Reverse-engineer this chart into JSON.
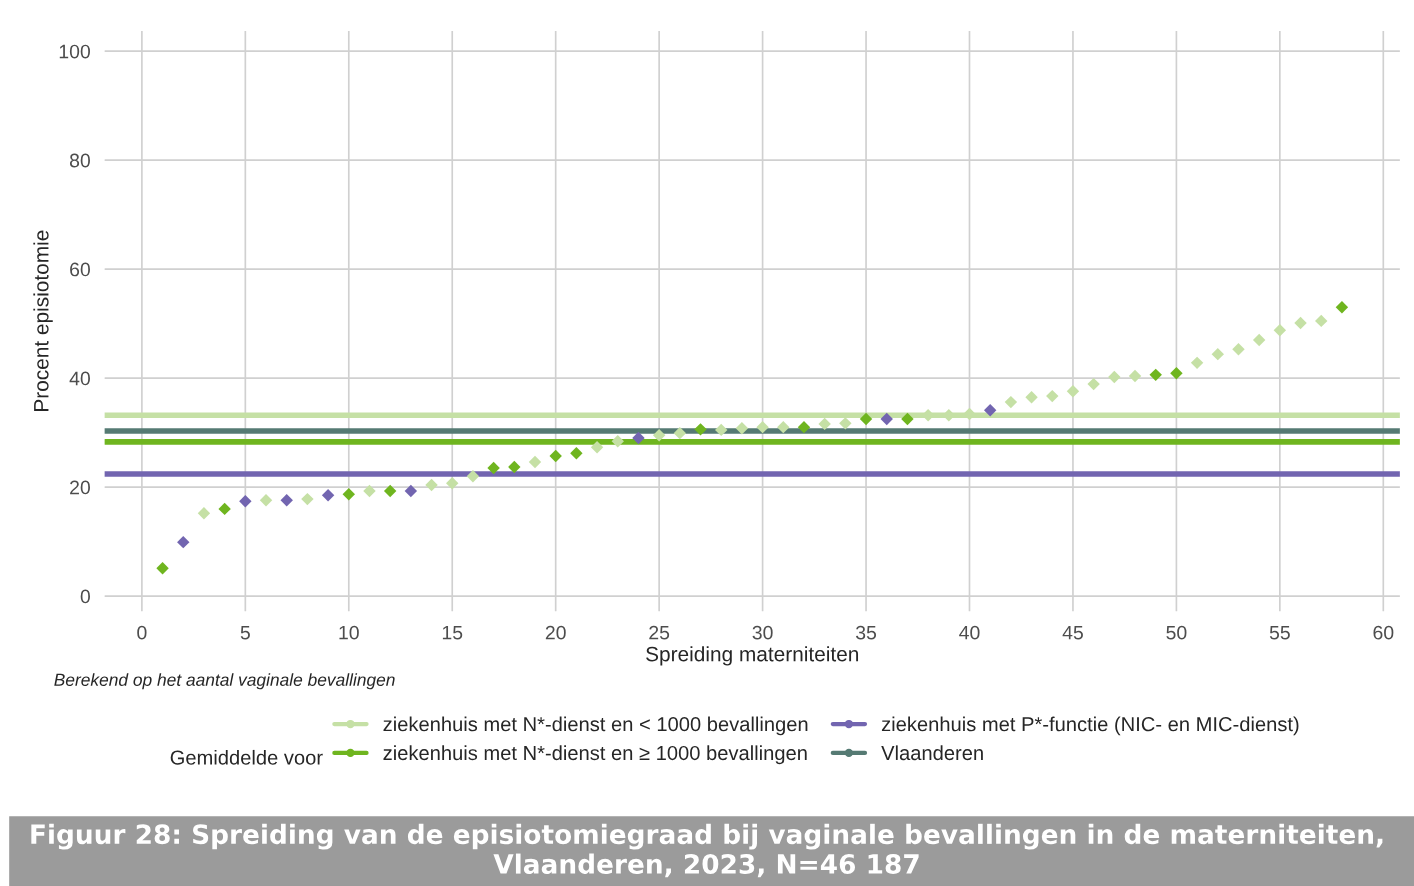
{
  "chart_data": {
    "type": "scatter",
    "title": "Figuur 28: Spreiding van de episiotomiegraad bij vaginale bevallingen in de materniteiten, Vlaanderen, 2023, N=46 187",
    "xlabel": "Spreiding materniteiten",
    "ylabel": "Procent episiotomie",
    "legend_title": "Gemiddelde voor",
    "annotations": [
      "Berekend op het aantal vaginale bevallingen"
    ],
    "series": [
      {
        "color": "#c5e0a5",
        "x": [
          3,
          6,
          8,
          11,
          14,
          15,
          16,
          19,
          22,
          23,
          25,
          26,
          28,
          29,
          30,
          31,
          33,
          34,
          38,
          39,
          40,
          42,
          43,
          44,
          45,
          46,
          47,
          48,
          51,
          52,
          53,
          54,
          55,
          56,
          57
        ],
        "values": [
          15.2,
          17.6,
          17.8,
          19.3,
          20.4,
          20.7,
          22.0,
          24.6,
          27.3,
          28.4,
          29.5,
          29.9,
          30.5,
          30.8,
          31.0,
          31.0,
          31.6,
          31.7,
          33.2,
          33.2,
          33.4,
          35.6,
          36.5,
          36.7,
          37.6,
          38.9,
          40.2,
          40.4,
          42.8,
          44.4,
          45.3,
          47.0,
          48.8,
          50.1,
          50.5
        ]
      },
      {
        "color": "#6fb51f",
        "x": [
          1,
          4,
          10,
          12,
          17,
          18,
          20,
          21,
          27,
          32,
          35,
          37,
          49,
          50,
          58
        ],
        "values": [
          5.1,
          16.0,
          18.7,
          19.3,
          23.5,
          23.7,
          25.7,
          26.2,
          30.6,
          31.0,
          32.5,
          32.5,
          40.6,
          40.9,
          53.0
        ]
      },
      {
        "color": "#7265b0",
        "x": [
          2,
          5,
          7,
          9,
          13,
          24,
          36,
          41
        ],
        "values": [
          9.9,
          17.4,
          17.6,
          18.5,
          19.3,
          29.0,
          32.5,
          34.1
        ]
      }
    ],
    "ref_lines": [
      {
        "axis": "y",
        "value": 33.2,
        "label": "ziekenhuis met N*-dienst en < 1000 bevallingen",
        "color": "#c5e0a5"
      },
      {
        "axis": "y",
        "value": 28.3,
        "label": "ziekenhuis met N*-dienst en ≥ 1000 bevallingen",
        "color": "#6fb51f"
      },
      {
        "axis": "y",
        "value": 22.4,
        "label": "ziekenhuis met P*-functie (NIC- en MIC-dienst)",
        "color": "#7265b0"
      },
      {
        "axis": "y",
        "value": 30.3,
        "label": "Vlaanderen",
        "color": "#557a73"
      }
    ],
    "xlim": [
      -1.8,
      60.8
    ],
    "xticks": [
      0,
      5,
      10,
      15,
      20,
      25,
      30,
      35,
      40,
      45,
      50,
      55,
      60
    ],
    "ylim": [
      -2.8,
      103.7
    ],
    "yticks": [
      0,
      20,
      40,
      60,
      80,
      100
    ],
    "grid": true,
    "legend": "bottom",
    "marker": "diamond"
  }
}
